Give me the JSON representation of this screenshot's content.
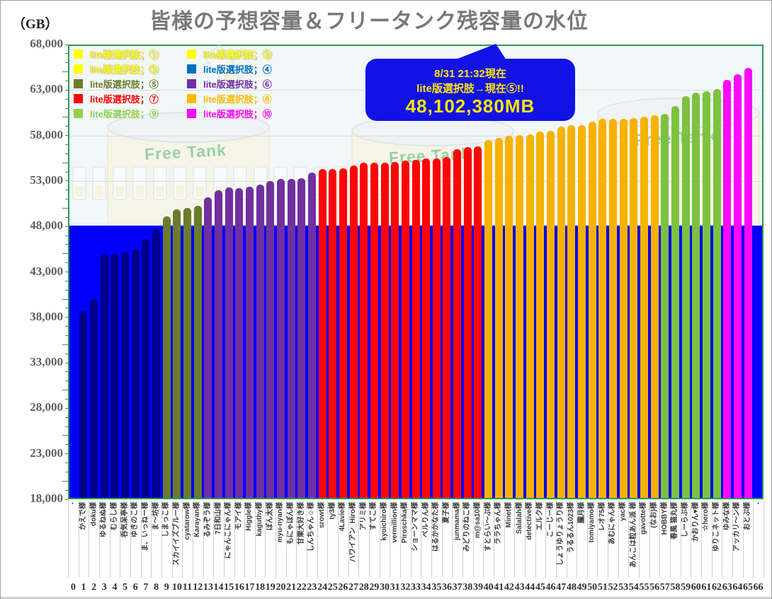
{
  "title": "皆様の予想容量＆フリータンク残容量の水位",
  "y_axis": {
    "unit_label": "（GB）",
    "tick_labels": [
      "68,000",
      "63,000",
      "58,000",
      "53,000",
      "48,000",
      "43,000",
      "38,000",
      "33,000",
      "28,000",
      "23,000",
      "18,000"
    ],
    "min": 18000,
    "max": 68000,
    "step": 5000,
    "minor_step": 1000
  },
  "x_axis": {
    "index_min": 0,
    "index_max": 66
  },
  "legend": {
    "items": [
      {
        "label": "lite版選択肢；①",
        "color": "#FFFF00"
      },
      {
        "label": "lite版選択肢；②",
        "color": "#FFFF00"
      },
      {
        "label": "lite版選択肢；③",
        "color": "#FFFF00"
      },
      {
        "label": "lite版選択肢；④",
        "color": "#0070C0"
      },
      {
        "label": "lite版選択肢；⑤",
        "color": "#6C7B2D"
      },
      {
        "label": "lite版選択肢；⑥",
        "color": "#7030A0"
      },
      {
        "label": "lite版選択肢；⑦",
        "color": "#FB0606"
      },
      {
        "label": "lite版選択肢；⑧",
        "color": "#FFB900"
      },
      {
        "label": "lite版選択肢；⑨",
        "color": "#92D050"
      },
      {
        "label": "lite版選択肢；⑩",
        "color": "#F90AF9"
      }
    ]
  },
  "callout": {
    "line1": "8/31 21:32現在",
    "line2": "lite版選択肢→現在⑤!!",
    "line3": "48,102,380MB",
    "bg_color": "#1212E6",
    "text_color": "#FFE600"
  },
  "watermark": {
    "tank_label": "Free Tank"
  },
  "chart_data": {
    "type": "bar",
    "title": "皆様の予想容量＆フリータンク残容量の水位",
    "ylabel": "（GB）",
    "ylim": [
      18000,
      68000
    ],
    "grid": "horizontal",
    "legend_position": "top-left",
    "frame_color": "#2E9955",
    "water_level_gb": 48102,
    "water_level_label": "48,102,380MB",
    "water_color": "#0101FB",
    "categories": [
      "-",
      "かえで様",
      "doku様",
      "ゆるねぬ様",
      "むらし様",
      "呑気呆亭様",
      "ゆきのこ様",
      "ま、いっねー様",
      "ま～坊様",
      "しまっこ様",
      "スカイイズブルー様",
      "cyatarow様",
      "Karayan様",
      "るみぞう様",
      "7日和山様",
      "にゃんこにゃん様",
      "モアイ様",
      "Higgle様",
      "kaguthy様",
      "ぽん太様",
      "myu-nyan様",
      "もにゃぽん様",
      "甘栗大好き様",
      "しんちゃん☺様",
      "srowt様",
      "ty3様",
      "4Lavie様",
      "ハワイアン_Hiro様",
      "アリミ様",
      "すてこ様",
      "kyoichiro様",
      "vermillion様",
      "Piroschka様",
      "ショーンママ様",
      "ベルりん様",
      "はるかかなた様",
      "夏子様",
      "junmama様",
      "みどりのねこ様",
      "m@sa10様",
      "すとらい～ぷ様",
      "ララちゃん様",
      "Minet様",
      "Salalah様",
      "detective様",
      "エルク様",
      "こーじー様",
      "しょうゆりょうり様",
      "うるるん1023様",
      "朧月様",
      "tomiyamo様",
      "レオ75様",
      "あむにゃん様",
      "yac様",
      "あんこは粒あん派 様",
      "gavotte様",
      "(なお)様",
      "HOBBY様",
      "春風 猫丸様",
      "しーらぶ様",
      "かおりん♥様",
      "☆hero様",
      "ゆりこネット様",
      "ゆみな様",
      "アッカリ～ン様",
      "おとぶ様",
      "-"
    ],
    "values": [
      null,
      38700,
      40000,
      44900,
      45000,
      45200,
      45500,
      46600,
      47700,
      49100,
      49900,
      50000,
      50300,
      51200,
      52000,
      52300,
      52200,
      52400,
      52600,
      53000,
      53200,
      53200,
      53300,
      53900,
      54300,
      54300,
      54400,
      54700,
      55000,
      55000,
      55000,
      55100,
      55250,
      55300,
      55500,
      55500,
      55600,
      56500,
      56700,
      56800,
      57500,
      57700,
      58000,
      58050,
      58150,
      58400,
      58550,
      59000,
      59100,
      59150,
      59500,
      59800,
      59870,
      59870,
      59900,
      60100,
      60200,
      60350,
      61200,
      62300,
      62700,
      62900,
      63100,
      64100,
      64700,
      65400,
      null
    ],
    "color_groups": [
      {
        "start": 1,
        "end": 8,
        "color": "#00008B"
      },
      {
        "start": 9,
        "end": 12,
        "color": "#6C7B2D"
      },
      {
        "start": 13,
        "end": 23,
        "color": "#7030A0"
      },
      {
        "start": 24,
        "end": 39,
        "color": "#FB0606"
      },
      {
        "start": 40,
        "end": 56,
        "color": "#F7B200"
      },
      {
        "start": 57,
        "end": 62,
        "color": "#7CC140"
      },
      {
        "start": 63,
        "end": 65,
        "color": "#F90AF9"
      }
    ]
  }
}
